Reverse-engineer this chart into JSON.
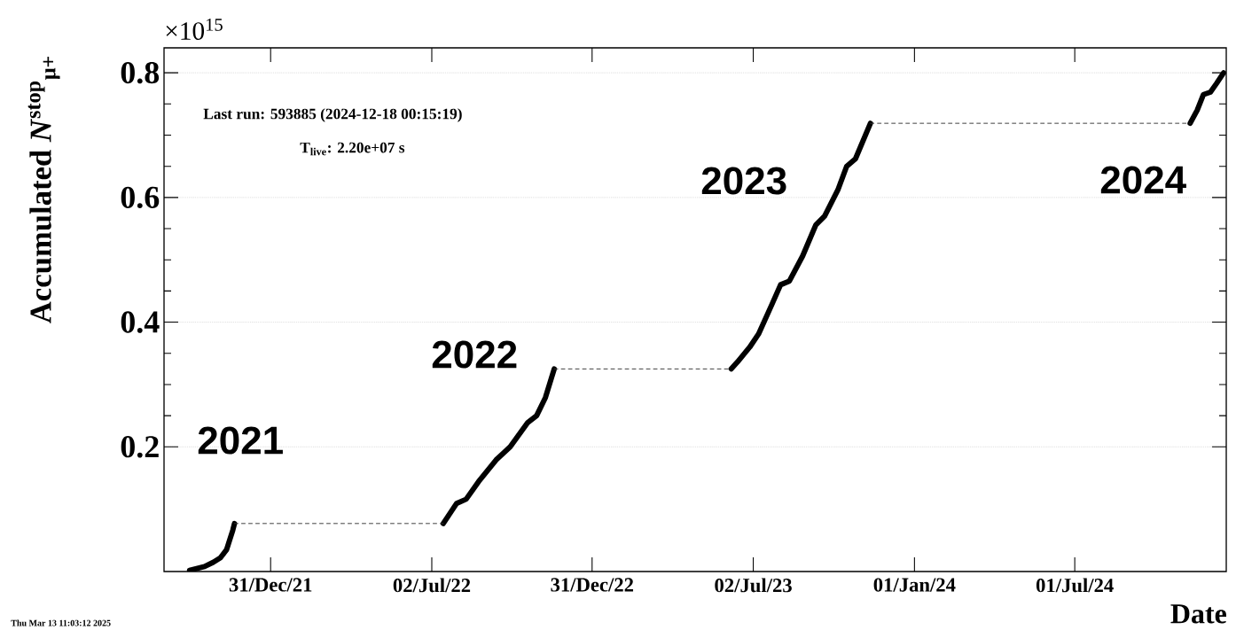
{
  "chart_data": {
    "type": "line",
    "ylabel": "Accumulated *N*$^{stop}$$_{μ+}$",
    "xlabel": "Date",
    "xlim": [
      "2021-09-01",
      "2024-12-20"
    ],
    "ylim": [
      0,
      0.84
    ],
    "xticks": [
      {
        "value": "2021-12-31",
        "label": "31/Dec/21"
      },
      {
        "value": "2022-07-02",
        "label": "02/Jul/22"
      },
      {
        "value": "2022-12-31",
        "label": "31/Dec/22"
      },
      {
        "value": "2023-07-02",
        "label": "02/Jul/23"
      },
      {
        "value": "2024-01-01",
        "label": "01/Jan/24"
      },
      {
        "value": "2024-07-01",
        "label": "01/Jul/24"
      }
    ],
    "yticks": [
      0.2,
      0.4,
      0.6,
      0.8
    ],
    "grid": "y",
    "series": [
      {
        "color": "#000000",
        "line_style": "solid",
        "x": [
          "2021-09-30",
          "2021-10-17",
          "2021-10-27",
          "2021-11-04",
          "2021-11-11",
          "2021-11-18",
          "2021-11-20",
          "2022-03-01",
          "2022-07-15",
          "2022-07-30",
          "2022-08-10",
          "2022-08-24",
          "2022-09-13",
          "2022-09-29",
          "2022-10-19",
          "2022-10-29",
          "2022-11-08",
          "2022-11-18",
          "2023-03-01",
          "2023-06-07",
          "2023-06-14",
          "2023-06-28",
          "2023-07-08",
          "2023-07-23",
          "2023-08-02",
          "2023-08-12",
          "2023-08-27",
          "2023-09-11",
          "2023-09-21",
          "2023-10-06",
          "2023-10-16",
          "2023-10-26",
          "2023-11-12",
          "2024-05-01",
          "2024-11-09",
          "2024-11-17",
          "2024-11-24",
          "2024-12-02",
          "2024-12-09",
          "2024-12-17"
        ],
        "values": [
          0.002,
          0.008,
          0.015,
          0.022,
          0.035,
          0.066,
          0.077,
          null,
          0.077,
          0.109,
          0.116,
          0.144,
          0.179,
          0.2,
          0.239,
          0.25,
          0.279,
          0.325,
          null,
          0.325,
          0.336,
          0.36,
          0.381,
          0.428,
          0.46,
          0.466,
          0.506,
          0.556,
          0.57,
          0.612,
          0.65,
          0.662,
          0.719,
          null,
          0.719,
          0.74,
          0.765,
          0.769,
          0.783,
          0.8
        ]
      },
      {
        "color": "#333333",
        "line_style": "dashed",
        "x": [
          "2021-11-20",
          "2022-07-15",
          "2022-09-01",
          "2022-11-18",
          "2023-06-07",
          "2023-09-01",
          "2023-11-12",
          "2024-11-09"
        ],
        "values": [
          0.077,
          0.077,
          null,
          0.325,
          0.325,
          null,
          0.719,
          0.719
        ]
      }
    ],
    "annotations": [
      "×10$^{15}$",
      "Last run: 593885 (2024-12-18 00:15:19)",
      "T$_{live}$: 2.20e+07 s",
      "2021",
      "2022",
      "2023",
      "2024",
      "Thu Mar 13 11:03:12 2025"
    ]
  }
}
